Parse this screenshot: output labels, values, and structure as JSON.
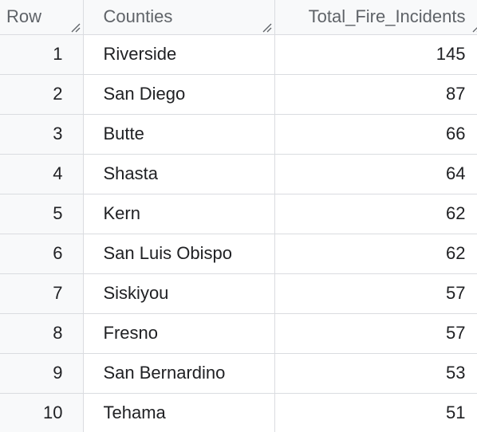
{
  "table": {
    "columns": {
      "row": "Row",
      "county": "Counties",
      "total": "Total_Fire_Incidents"
    },
    "rows": [
      {
        "row": "1",
        "county": "Riverside",
        "total": "145"
      },
      {
        "row": "2",
        "county": "San Diego",
        "total": "87"
      },
      {
        "row": "3",
        "county": "Butte",
        "total": "66"
      },
      {
        "row": "4",
        "county": "Shasta",
        "total": "64"
      },
      {
        "row": "5",
        "county": "Kern",
        "total": "62"
      },
      {
        "row": "6",
        "county": "San Luis Obispo",
        "total": "62"
      },
      {
        "row": "7",
        "county": "Siskiyou",
        "total": "57"
      },
      {
        "row": "8",
        "county": "Fresno",
        "total": "57"
      },
      {
        "row": "9",
        "county": "San Bernardino",
        "total": "53"
      },
      {
        "row": "10",
        "county": "Tehama",
        "total": "51"
      }
    ]
  },
  "colors": {
    "header_bg": "#f8f9fa",
    "border": "#dadce0",
    "header_text": "#5f6368",
    "cell_text": "#202124"
  }
}
